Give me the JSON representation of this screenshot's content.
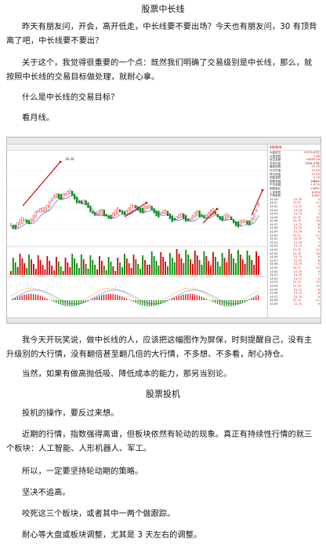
{
  "article": {
    "heading1": "股票中长线",
    "p1": "昨天有朋友问，开会，高开低走，中长线要不要出场？今天也有朋友问，30 有顶背离了吧，中长线要不要出？",
    "p2": "关于这个，我觉得很重要的一个点：既然我们明确了交易级别是中长线，那么，就按照中长线的交易目标做处理，就耐心拿。",
    "p3": "什么是中长线的交易目标？",
    "p4": "看月线。",
    "p5": "我今天开玩笑说，做中长线的人，应该把这幅图作为屏保，时刻提醒自己，没有主升级别的大行情，没有翻倍甚至翻几倍的大行情，不多想、不多看，耐心持仓。",
    "p6": "当然，如果有做高抛低吸、降低成本的能力，那另当别论。",
    "heading2": "股票投机",
    "p7": "投机的操作，要反过来想。",
    "p8": "近期的行情，指数强得离谱，但板块依然有轮动的现象。真正有持续性行情的就三个板块：人工智能、人形机器人、军工。",
    "p9": "所以，一定要坚持轮动期的策略。",
    "p10": "坚决不追高。",
    "p11": "咬死这三个板块，或者其中一两个做跟踪。",
    "p12": "耐心等大盘或板块调整，尤其是 3 天左右的调整。"
  },
  "screenshot": {
    "menu": [
      "1分钟",
      "5分钟",
      "15分钟",
      "30分钟",
      "60分钟",
      "日线",
      "周线",
      "月线",
      "多周期",
      "更多"
    ],
    "toolbar": [
      "前复权",
      "叠加",
      "统计",
      "画线",
      "F10",
      "标记",
      "自选",
      "返回"
    ],
    "peak_label": "18.30",
    "side_title": "888888",
    "quote_rows": [
      {
        "k": "大盘成交",
        "v": "13375.87亿"
      },
      {
        "k": "大盘涨跌",
        "v": "1.46"
      },
      {
        "k": "成交金额",
        "v": "24652.28"
      },
      {
        "k": "总成交量",
        "v": "2131.27亿"
      },
      {
        "k": "最新指数",
        "v": "21.72"
      },
      {
        "k": "今日开盘",
        "v": "21.45"
      },
      {
        "k": "昨日收盘",
        "v": "21.53"
      },
      {
        "k": "指数涨跌",
        "v": "0.19"
      },
      {
        "k": "指数涨幅",
        "v": "0.88%"
      },
      {
        "k": "平均涨幅",
        "v": "1.07%"
      },
      {
        "k": "指数量比",
        "v": "0.88%"
      },
      {
        "k": "上涨家数",
        "v": "8,303"
      },
      {
        "k": "下跌家数",
        "v": "4,562"
      }
    ],
    "status": [
      "上证",
      "深证",
      "创业",
      "科创",
      "中小板"
    ]
  },
  "colors": {
    "up": "#d40000",
    "down": "#008a00",
    "ma": "#1f5fd6"
  }
}
